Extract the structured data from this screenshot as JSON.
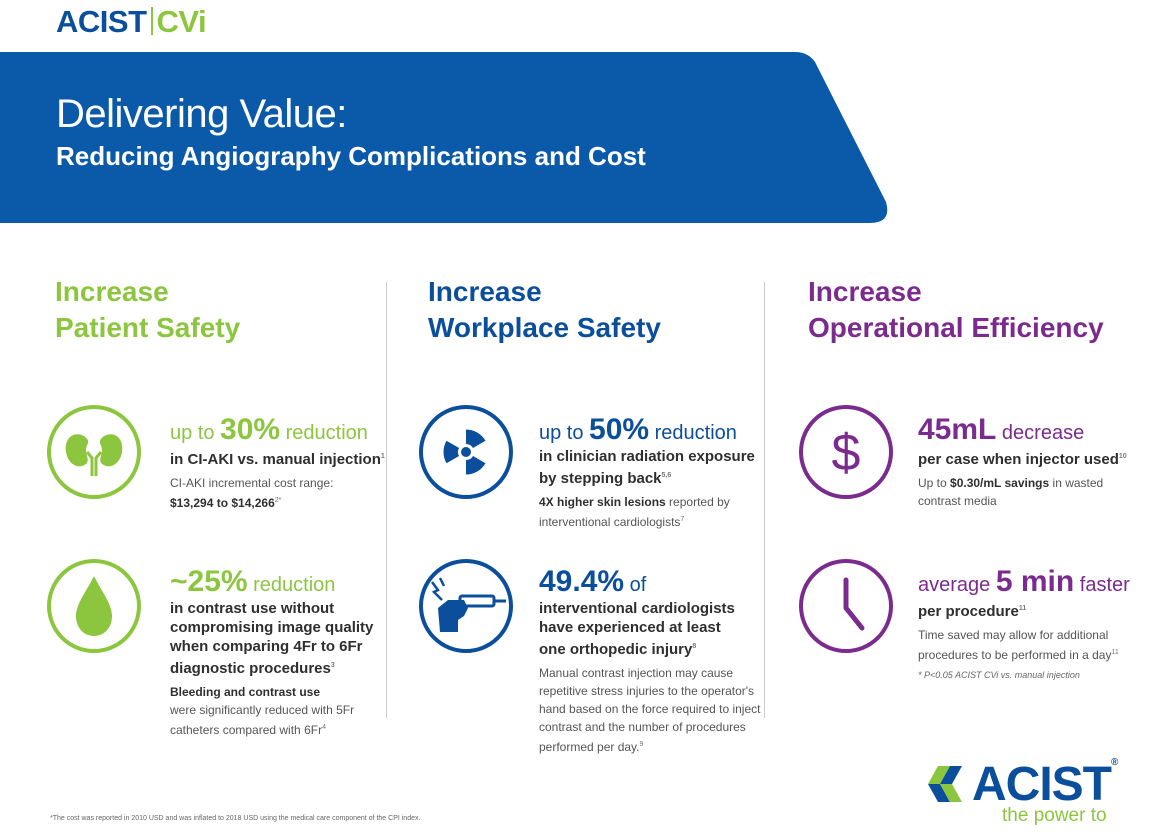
{
  "header": {
    "logo_left": "ACIST",
    "logo_right": "CVi",
    "title": "Delivering Value:",
    "subtitle": "Reducing Angiography Complications and Cost"
  },
  "colors": {
    "brand_blue": "#0b4f9c",
    "green": "#8cc63f",
    "purple": "#7b2b8e"
  },
  "columns": [
    {
      "heading_line1": "Increase",
      "heading_line2": "Patient Safety",
      "blocks": [
        {
          "icon": "kidneys-icon",
          "stat_prefix": "up to ",
          "stat_value": "30%",
          "stat_suffix": " reduction",
          "bold_text": "in CI-AKI vs. manual injection",
          "bold_sup": "1",
          "detail_text": "CI-AKI incremental cost range:",
          "detail_bold": "$13,294 to $14,266",
          "detail_sup": "2*"
        },
        {
          "icon": "droplet-icon",
          "stat_value": "~25%",
          "stat_suffix": " reduction",
          "bold_lines": [
            "in contrast use without",
            "compromising image quality",
            "when comparing 4Fr to 6Fr",
            "diagnostic procedures"
          ],
          "bold_sup": "3",
          "detail_bold": "Bleeding and contrast use",
          "detail_lines": [
            "were significantly reduced with 5Fr",
            "catheters compared with 6Fr"
          ],
          "detail_sup": "4"
        }
      ]
    },
    {
      "heading_line1": "Increase",
      "heading_line2": "Workplace Safety",
      "blocks": [
        {
          "icon": "radiation-icon",
          "stat_prefix": "up to ",
          "stat_value": "50%",
          "stat_suffix": " reduction",
          "bold_lines": [
            "in clinician radiation exposure",
            "by stepping back"
          ],
          "bold_sup": "5,6",
          "detail_bold": "4X higher skin lesions",
          "detail_text": " reported by",
          "detail_lines": [
            "interventional cardiologists"
          ],
          "detail_sup": "7"
        },
        {
          "icon": "hand-injector-icon",
          "stat_value": "49.4%",
          "stat_suffix": " of",
          "bold_lines": [
            "interventional cardiologists",
            "have experienced at least",
            "one orthopedic injury"
          ],
          "bold_sup": "8",
          "detail_lines": [
            "Manual contrast injection may cause",
            "repetitive stress injuries to the operator's",
            "hand based on the force required to inject",
            "contrast and the number of procedures",
            "performed per day."
          ],
          "detail_sup": "9"
        }
      ]
    },
    {
      "heading_line1": "Increase",
      "heading_line2": "Operational Efficiency",
      "blocks": [
        {
          "icon": "dollar-icon",
          "stat_value": "45mL",
          "stat_suffix": " decrease",
          "bold_text": "per case when injector used",
          "bold_sup": "10",
          "detail_text": "Up to ",
          "detail_bold": "$0.30/mL savings",
          "detail_text2": " in wasted",
          "detail_lines": [
            "contrast media"
          ]
        },
        {
          "icon": "clock-icon",
          "stat_prefix": "average ",
          "stat_value": "5 min",
          "stat_suffix": " faster",
          "bold_text": "per procedure",
          "bold_sup": "11",
          "detail_lines": [
            "Time saved may allow for additional",
            "procedures to be performed in a day"
          ],
          "detail_sup": "11",
          "note": "* P<0.05 ACIST CVi vs. manual injection"
        }
      ]
    }
  ],
  "footer": {
    "footnote": "*The cost was reported in 2010 USD and was inflated to 2018 USD using the medical care component of the CPI index.",
    "brand": "ACIST",
    "registered": "®",
    "tagline": "the power to"
  }
}
